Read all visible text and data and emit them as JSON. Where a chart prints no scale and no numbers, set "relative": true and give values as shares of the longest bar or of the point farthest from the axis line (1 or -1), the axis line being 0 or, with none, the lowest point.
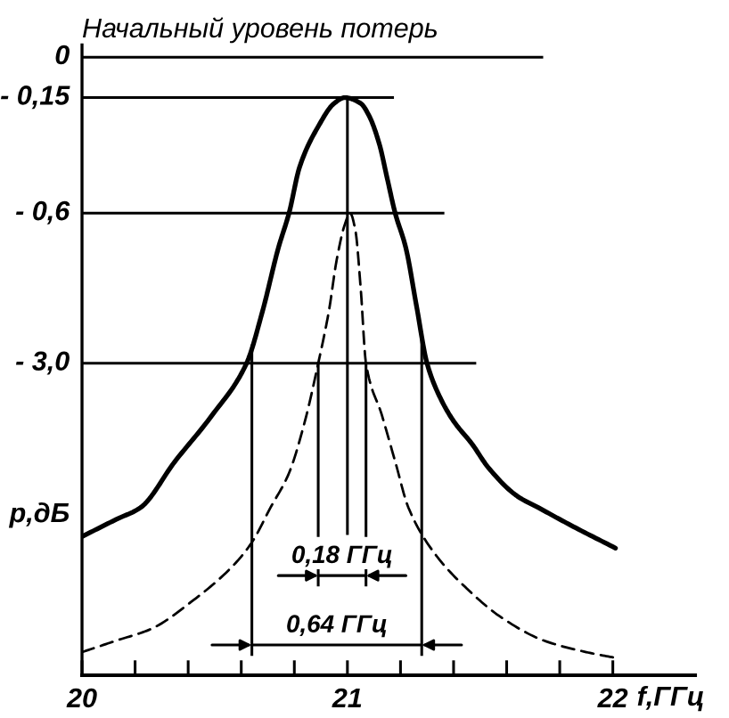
{
  "chart_data": {
    "type": "line",
    "title": "Начальный уровень потерь",
    "xlabel": "f,ГГц",
    "ylabel": "p,дБ",
    "relative": true,
    "xlim": [
      20,
      22.31
    ],
    "xticks": [
      20,
      {
        "value": 20.2,
        "label": null
      },
      {
        "value": 20.4,
        "label": null
      },
      {
        "value": 20.6,
        "label": null
      },
      {
        "value": 20.8,
        "label": null
      },
      21,
      {
        "value": 21.2,
        "label": null
      },
      {
        "value": 21.4,
        "label": null
      },
      {
        "value": 21.6,
        "label": null
      },
      {
        "value": 21.8,
        "label": null
      },
      22
    ],
    "series": [
      {
        "color": "#000000",
        "line_style": "solid",
        "x": [
          20.0,
          20.13,
          20.22,
          20.35,
          20.49,
          20.62,
          20.68,
          20.74,
          20.78,
          20.82,
          20.89,
          20.95,
          20.99,
          21.05,
          21.08,
          21.12,
          21.15,
          21.18,
          21.22,
          21.26,
          21.3,
          21.35,
          21.4,
          21.47,
          21.53,
          21.64,
          21.72,
          21.84,
          22.01
        ],
        "values": [
          0.24,
          0.27,
          0.29,
          0.37,
          0.45,
          0.54,
          0.63,
          0.74,
          0.8,
          0.88,
          0.95,
          0.99,
          1.0,
          0.99,
          0.97,
          0.92,
          0.86,
          0.8,
          0.74,
          0.64,
          0.54,
          0.48,
          0.44,
          0.4,
          0.36,
          0.31,
          0.29,
          0.26,
          0.22
        ]
      },
      {
        "color": "#000000",
        "line_style": "dashed",
        "x": [
          20.0,
          20.13,
          20.26,
          20.42,
          20.57,
          20.64,
          20.71,
          20.78,
          20.84,
          20.89,
          20.93,
          20.96,
          20.99,
          21.01,
          21.03,
          21.05,
          21.07,
          21.13,
          21.18,
          21.23,
          21.33,
          21.45,
          21.58,
          21.74,
          21.9,
          22.01
        ],
        "values": [
          0.04,
          0.06,
          0.08,
          0.13,
          0.19,
          0.23,
          0.29,
          0.35,
          0.44,
          0.54,
          0.63,
          0.72,
          0.78,
          0.8,
          0.77,
          0.67,
          0.54,
          0.45,
          0.37,
          0.29,
          0.21,
          0.15,
          0.1,
          0.06,
          0.04,
          0.03
        ]
      }
    ],
    "ref_lines": [
      {
        "axis": "y",
        "value": 1.07
      },
      {
        "axis": "y",
        "value": 1.0
      },
      {
        "axis": "y",
        "value": 0.8
      },
      {
        "axis": "y",
        "value": 0.54
      },
      {
        "axis": "x",
        "value": 20.64
      },
      {
        "axis": "x",
        "value": 20.89
      },
      {
        "axis": "x",
        "value": 21.0
      },
      {
        "axis": "x",
        "value": 21.07
      },
      {
        "axis": "x",
        "value": 21.28
      }
    ],
    "annotations": [
      "0",
      "- 0,15",
      "- 0,6",
      "- 3,0",
      "0,18 ГГц",
      "0,64 ГГц"
    ]
  }
}
